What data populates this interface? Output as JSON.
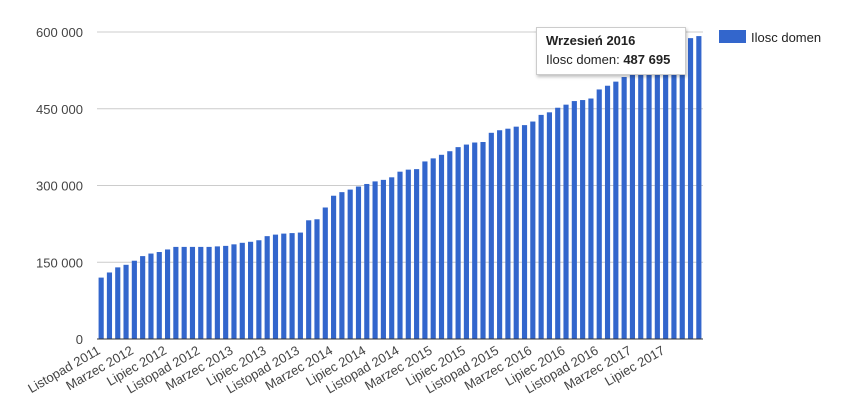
{
  "chart_data": {
    "type": "bar",
    "title": "",
    "xlabel": "",
    "ylabel": "",
    "ylim": [
      0,
      600000
    ],
    "y_ticks": [
      "0",
      "150 000",
      "300 000",
      "450 000",
      "600 000"
    ],
    "y_tick_values": [
      0,
      150000,
      300000,
      450000,
      600000
    ],
    "grid": true,
    "legend_position": "right",
    "color": "#3366cc",
    "x_tick_labels": [
      "Listopad 2011",
      "Marzec 2012",
      "Lipiec 2012",
      "Listopad 2012",
      "Marzec 2013",
      "Lipiec 2013",
      "Listopad 2013",
      "Marzec 2014",
      "Lipiec 2014",
      "Listopad 2014",
      "Marzec 2015",
      "Lipiec 2015",
      "Listopad 2015",
      "Marzec 2016",
      "Lipiec 2016",
      "Listopad 2016",
      "Marzec 2017",
      "Lipiec 2017"
    ],
    "series": [
      {
        "name": "Ilosc domen",
        "values": [
          120000,
          130000,
          140000,
          145000,
          153000,
          162000,
          167000,
          170000,
          175000,
          180000,
          180000,
          180000,
          180000,
          180000,
          181000,
          182000,
          185000,
          188000,
          190000,
          193000,
          201000,
          204000,
          206000,
          207000,
          208000,
          232000,
          234000,
          257000,
          280000,
          287000,
          292000,
          298000,
          303000,
          308000,
          311000,
          316000,
          327000,
          331000,
          332000,
          347000,
          353000,
          360000,
          367000,
          375000,
          380000,
          384000,
          385000,
          403000,
          408000,
          411000,
          415000,
          418000,
          425000,
          438000,
          443000,
          452000,
          458000,
          465000,
          467000,
          470000,
          487695,
          495000,
          503000,
          512000,
          520000,
          530000,
          540000,
          550000,
          560000,
          570000,
          580000,
          588000,
          592000
        ]
      }
    ],
    "tooltip": {
      "title": "Wrzesień 2016",
      "label": "Ilosc domen:",
      "value": "487 695"
    }
  }
}
